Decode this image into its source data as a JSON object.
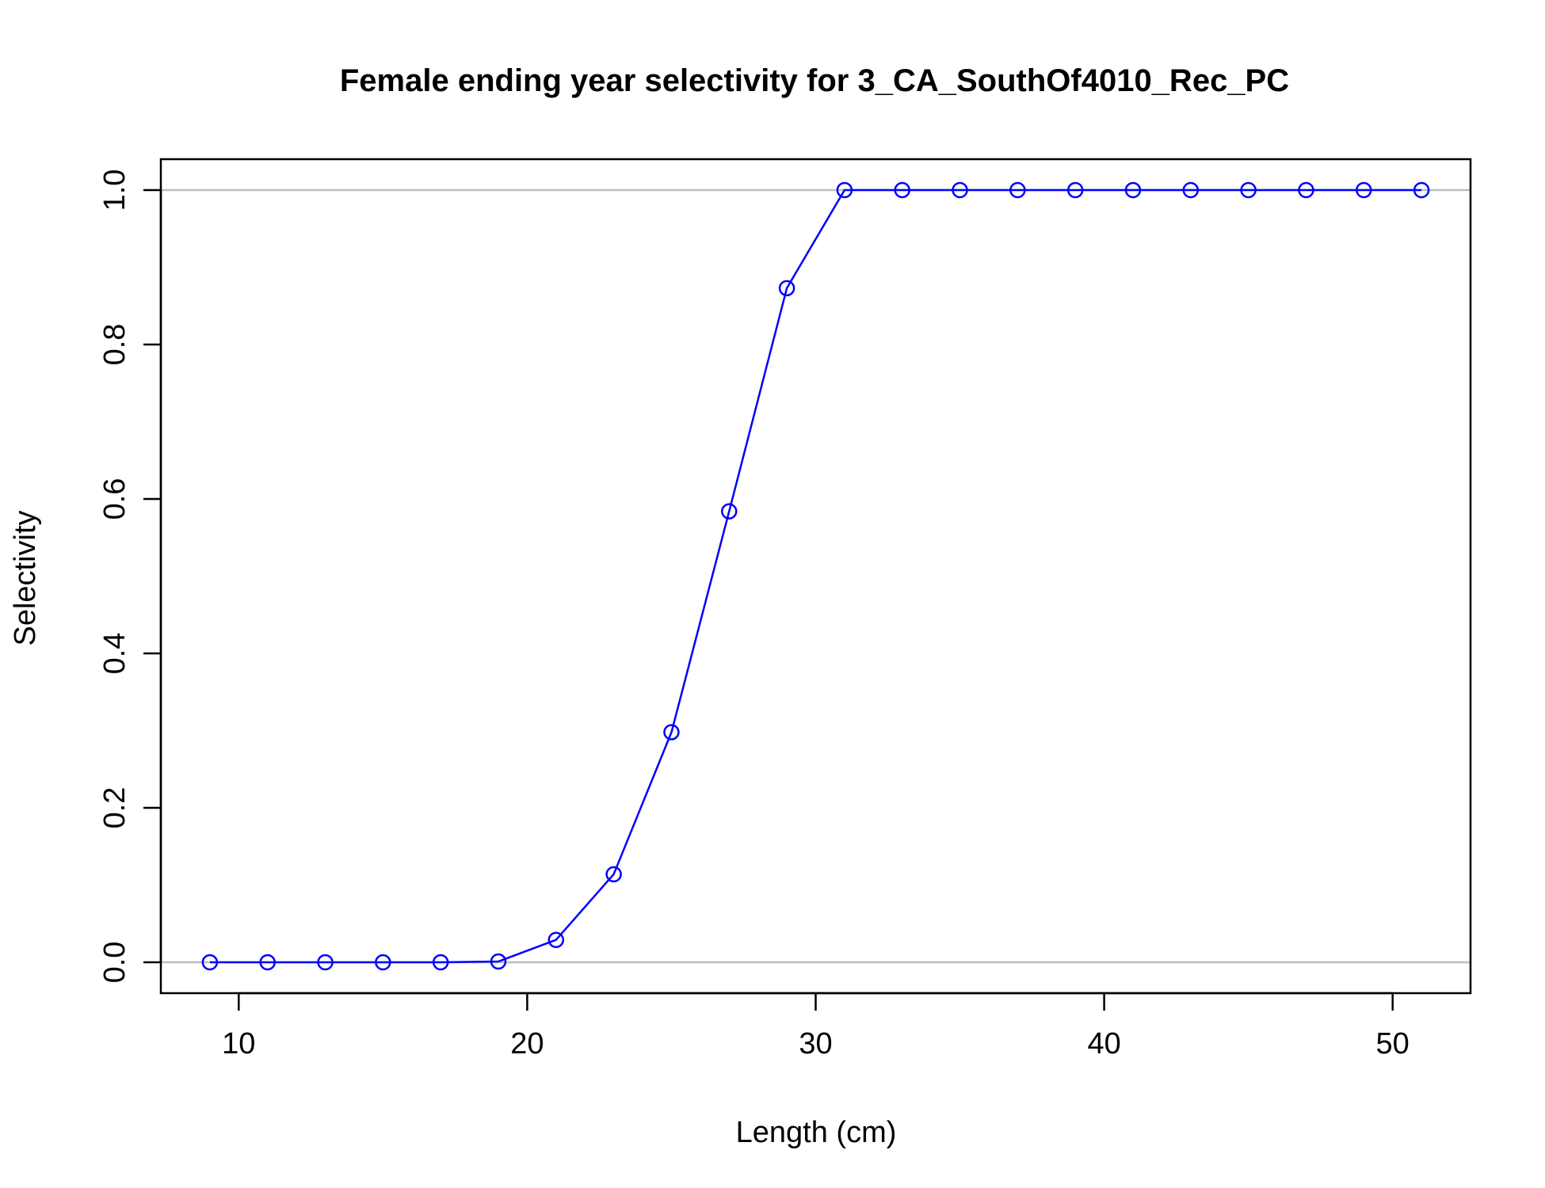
{
  "chart_data": {
    "type": "line",
    "title": "Female ending year selectivity for 3_CA_SouthOf4010_Rec_PC",
    "xlabel": "Length (cm)",
    "ylabel": "Selectivity",
    "xlim": [
      7.3,
      52.7
    ],
    "ylim": [
      -0.04,
      1.04
    ],
    "x_ticks": [
      10,
      20,
      30,
      40,
      50
    ],
    "x_tick_labels": [
      "10",
      "20",
      "30",
      "40",
      "50"
    ],
    "y_ticks": [
      0,
      0.2,
      0.4,
      0.6,
      0.8,
      1.0
    ],
    "y_tick_labels": [
      "0.0",
      "0.2",
      "0.4",
      "0.6",
      "0.8",
      "1.0"
    ],
    "reference_lines": [
      0,
      1
    ],
    "marker": "open-circle",
    "legend": "none",
    "grid": false,
    "series": [
      {
        "color": "#0000FF",
        "x": [
          9,
          11,
          13,
          15,
          17,
          19,
          21,
          23,
          25,
          27,
          29,
          31,
          33,
          35,
          37,
          39,
          41,
          43,
          45,
          47,
          49,
          51
        ],
        "y": [
          0.0,
          0.0,
          0.0,
          0.0,
          0.0,
          0.001,
          0.029,
          0.114,
          0.298,
          0.584,
          0.873,
          1.0,
          1.0,
          1.0,
          1.0,
          1.0,
          1.0,
          1.0,
          1.0,
          1.0,
          1.0,
          1.0
        ]
      }
    ],
    "colors": {
      "series": "#0000FF",
      "reference_line": "#BEBEBE",
      "frame": "#000000"
    }
  }
}
